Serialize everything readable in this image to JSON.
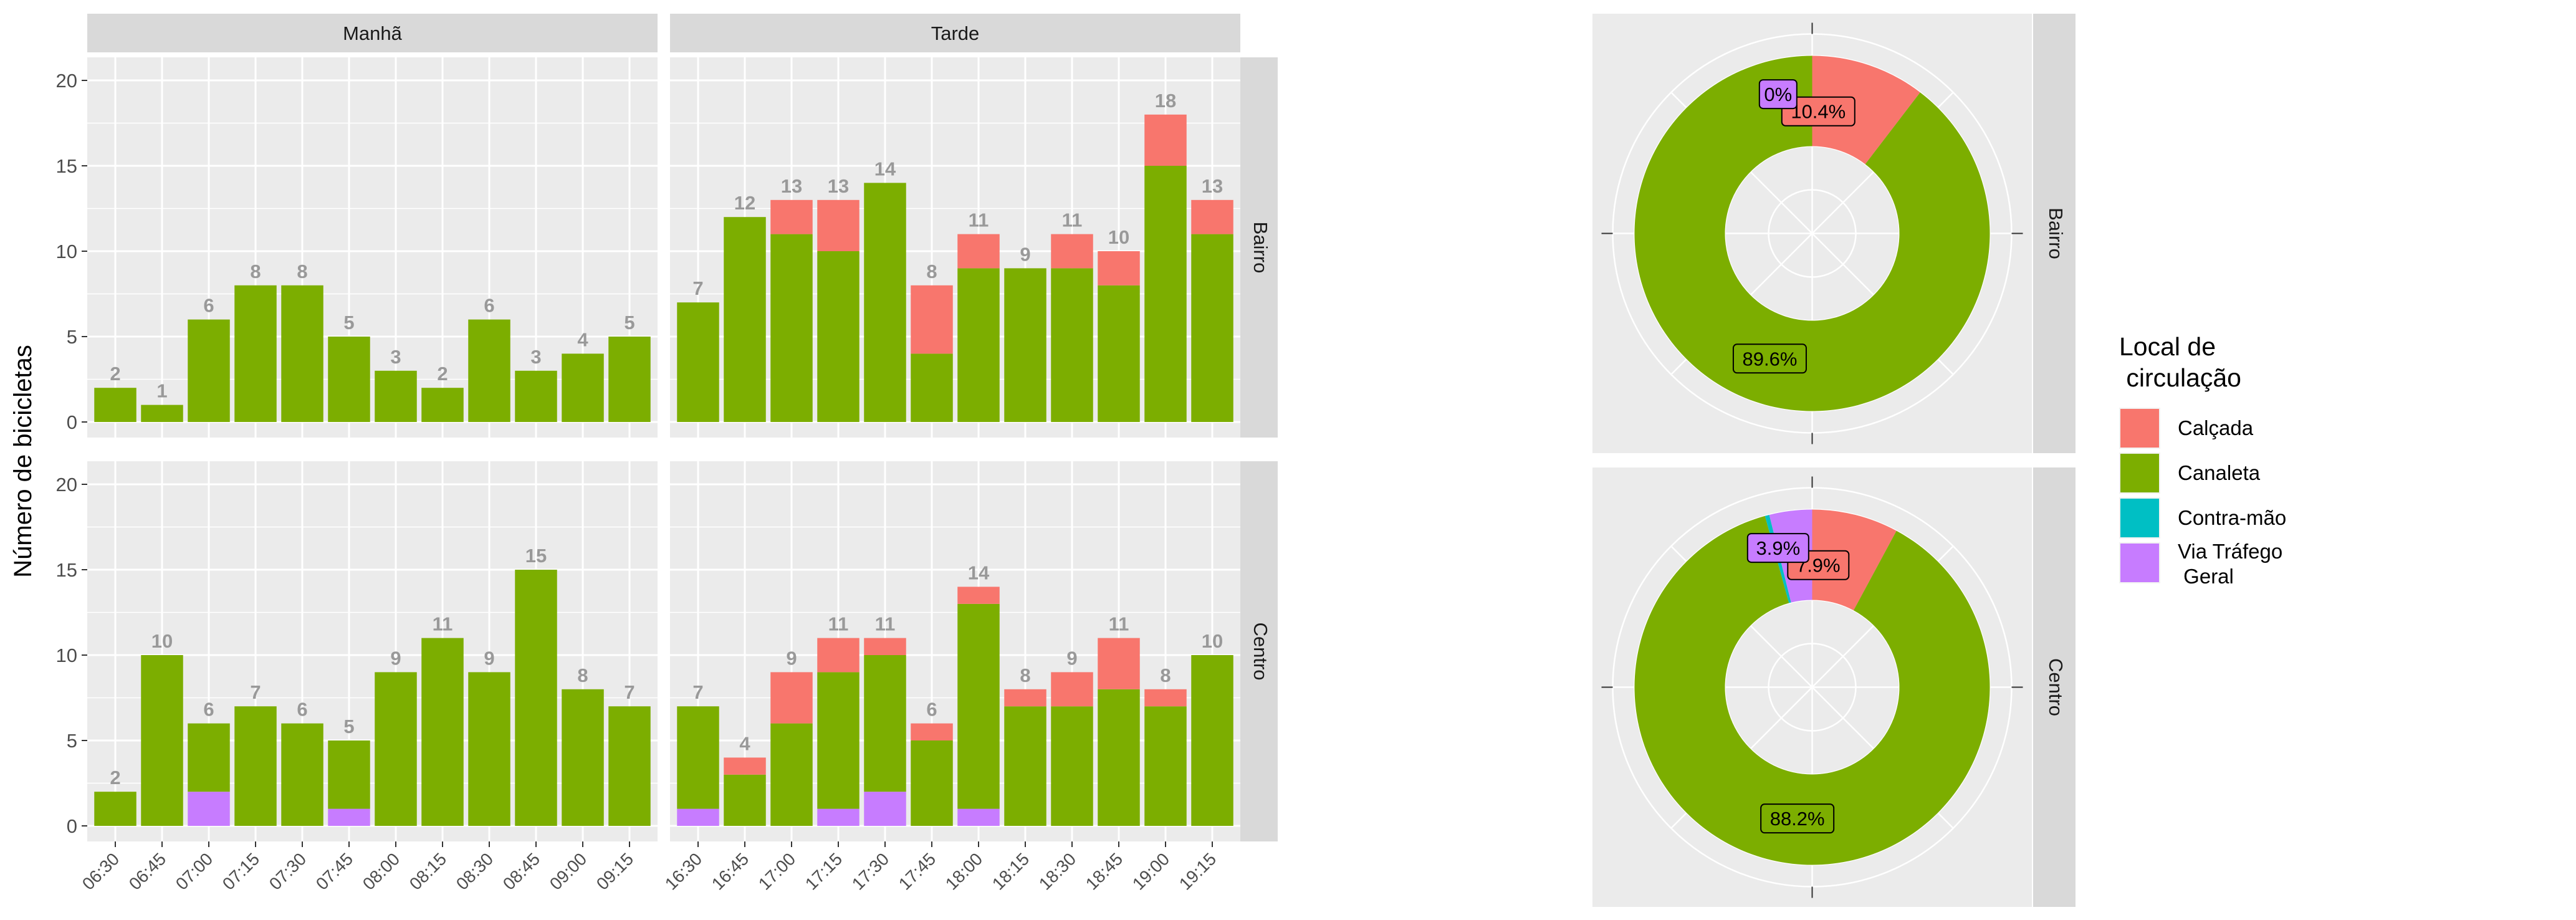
{
  "colors": {
    "calcada": "#F8766D",
    "canaleta": "#7CAE00",
    "contramao": "#00BFC4",
    "viatrafego": "#C77CFF",
    "panel_bg": "#EBEBEB",
    "strip_bg": "#D9D9D9",
    "grid": "#FFFFFF",
    "total_label": "#999999"
  },
  "chart_data": [
    {
      "type": "bar",
      "stacked": true,
      "ylabel": "Número de bicicletas",
      "ylim": [
        0,
        20
      ],
      "y_ticks": [
        0,
        5,
        10,
        15,
        20
      ],
      "facet_cols": [
        "Manhã",
        "Tarde"
      ],
      "facet_rows": [
        "Bairro",
        "Centro"
      ],
      "stack_order": [
        "Via Tráfego Geral",
        "Contra-mão",
        "Canaleta",
        "Calçada"
      ],
      "panels": [
        {
          "col": "Manhã",
          "row": "Bairro",
          "categories": [
            "06:30",
            "06:45",
            "07:00",
            "07:15",
            "07:30",
            "07:45",
            "08:00",
            "08:15",
            "08:30",
            "08:45",
            "09:00",
            "09:15"
          ],
          "series": [
            {
              "name": "Via Tráfego Geral",
              "values": [
                0,
                0,
                0,
                0,
                0,
                0,
                0,
                0,
                0,
                0,
                0,
                0
              ]
            },
            {
              "name": "Contra-mão",
              "values": [
                0,
                0,
                0,
                0,
                0,
                0,
                0,
                0,
                0,
                0,
                0,
                0
              ]
            },
            {
              "name": "Canaleta",
              "values": [
                2,
                1,
                6,
                8,
                8,
                5,
                3,
                2,
                6,
                3,
                4,
                5
              ]
            },
            {
              "name": "Calçada",
              "values": [
                0,
                0,
                0,
                0,
                0,
                0,
                0,
                0,
                0,
                0,
                0,
                0
              ]
            }
          ],
          "totals": [
            2,
            1,
            6,
            8,
            8,
            5,
            3,
            2,
            6,
            3,
            4,
            5
          ]
        },
        {
          "col": "Tarde",
          "row": "Bairro",
          "categories": [
            "16:30",
            "16:45",
            "17:00",
            "17:15",
            "17:30",
            "17:45",
            "18:00",
            "18:15",
            "18:30",
            "18:45",
            "19:00",
            "19:15"
          ],
          "series": [
            {
              "name": "Via Tráfego Geral",
              "values": [
                0,
                0,
                0,
                0,
                0,
                0,
                0,
                0,
                0,
                0,
                0,
                0
              ]
            },
            {
              "name": "Contra-mão",
              "values": [
                0,
                0,
                0,
                0,
                0,
                0,
                0,
                0,
                0,
                0,
                0,
                0
              ]
            },
            {
              "name": "Canaleta",
              "values": [
                7,
                12,
                11,
                10,
                14,
                4,
                9,
                9,
                9,
                8,
                15,
                11
              ]
            },
            {
              "name": "Calçada",
              "values": [
                0,
                0,
                2,
                3,
                0,
                4,
                2,
                0,
                2,
                2,
                3,
                2
              ]
            }
          ],
          "totals": [
            7,
            12,
            13,
            13,
            14,
            8,
            11,
            9,
            11,
            10,
            18,
            13
          ]
        },
        {
          "col": "Manhã",
          "row": "Centro",
          "categories": [
            "06:30",
            "06:45",
            "07:00",
            "07:15",
            "07:30",
            "07:45",
            "08:00",
            "08:15",
            "08:30",
            "08:45",
            "09:00",
            "09:15"
          ],
          "series": [
            {
              "name": "Via Tráfego Geral",
              "values": [
                0,
                0,
                2,
                0,
                0,
                1,
                0,
                0,
                0,
                0,
                0,
                0
              ]
            },
            {
              "name": "Contra-mão",
              "values": [
                0,
                0,
                0,
                0,
                0,
                0,
                0,
                0,
                0,
                0,
                0,
                0
              ]
            },
            {
              "name": "Canaleta",
              "values": [
                2,
                10,
                4,
                7,
                6,
                4,
                9,
                11,
                9,
                15,
                8,
                7
              ]
            },
            {
              "name": "Calçada",
              "values": [
                0,
                0,
                0,
                0,
                0,
                0,
                0,
                0,
                0,
                0,
                0,
                0
              ]
            }
          ],
          "totals": [
            2,
            10,
            6,
            7,
            6,
            5,
            9,
            11,
            9,
            15,
            8,
            7
          ]
        },
        {
          "col": "Tarde",
          "row": "Centro",
          "categories": [
            "16:30",
            "16:45",
            "17:00",
            "17:15",
            "17:30",
            "17:45",
            "18:00",
            "18:15",
            "18:30",
            "18:45",
            "19:00",
            "19:15"
          ],
          "series": [
            {
              "name": "Via Tráfego Geral",
              "values": [
                1,
                0,
                0,
                1,
                2,
                0,
                1,
                0,
                0,
                0,
                0,
                0
              ]
            },
            {
              "name": "Contra-mão",
              "values": [
                0,
                0,
                0,
                0,
                0,
                0,
                0,
                0,
                0,
                0,
                0,
                0
              ]
            },
            {
              "name": "Canaleta",
              "values": [
                6,
                3,
                6,
                8,
                8,
                5,
                12,
                7,
                7,
                8,
                7,
                10
              ]
            },
            {
              "name": "Calçada",
              "values": [
                0,
                1,
                3,
                2,
                1,
                1,
                1,
                1,
                2,
                3,
                1,
                0
              ]
            }
          ],
          "totals": [
            7,
            4,
            9,
            11,
            11,
            6,
            14,
            8,
            9,
            11,
            8,
            10
          ]
        }
      ]
    },
    {
      "type": "pie",
      "donut": true,
      "facet_rows": [
        "Bairro",
        "Centro"
      ],
      "legend_title": "Local de\n circulação",
      "legend_position": "right",
      "legend_entries": [
        "Calçada",
        "Canaleta",
        "Contra-mão",
        "Via Tráfego\n Geral"
      ],
      "panels": [
        {
          "row": "Bairro",
          "slices": [
            {
              "name": "Calçada",
              "value": 10.4,
              "label": "10.4%"
            },
            {
              "name": "Canaleta",
              "value": 89.6,
              "label": "89.6%"
            },
            {
              "name": "Contra-mão",
              "value": 0,
              "label": ""
            },
            {
              "name": "Via Tráfego Geral",
              "value": 0,
              "label": "0%"
            }
          ]
        },
        {
          "row": "Centro",
          "slices": [
            {
              "name": "Calçada",
              "value": 7.9,
              "label": "7.9%"
            },
            {
              "name": "Canaleta",
              "value": 88.2,
              "label": "88.2%"
            },
            {
              "name": "Contra-mão",
              "value": 0.4,
              "label": ""
            },
            {
              "name": "Via Tráfego Geral",
              "value": 3.9,
              "label": "3.9%"
            }
          ]
        }
      ]
    }
  ]
}
